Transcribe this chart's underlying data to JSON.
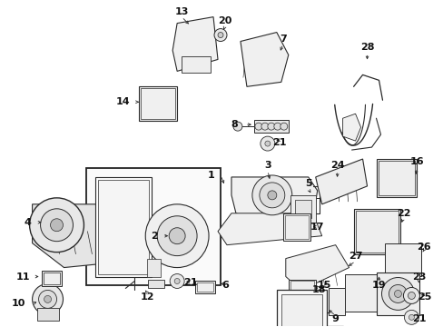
{
  "bg_color": "#ffffff",
  "fig_width": 4.89,
  "fig_height": 3.6,
  "dpi": 100,
  "line_color": "#2a2a2a",
  "fill_light": "#f0f0f0",
  "fill_white": "#ffffff"
}
